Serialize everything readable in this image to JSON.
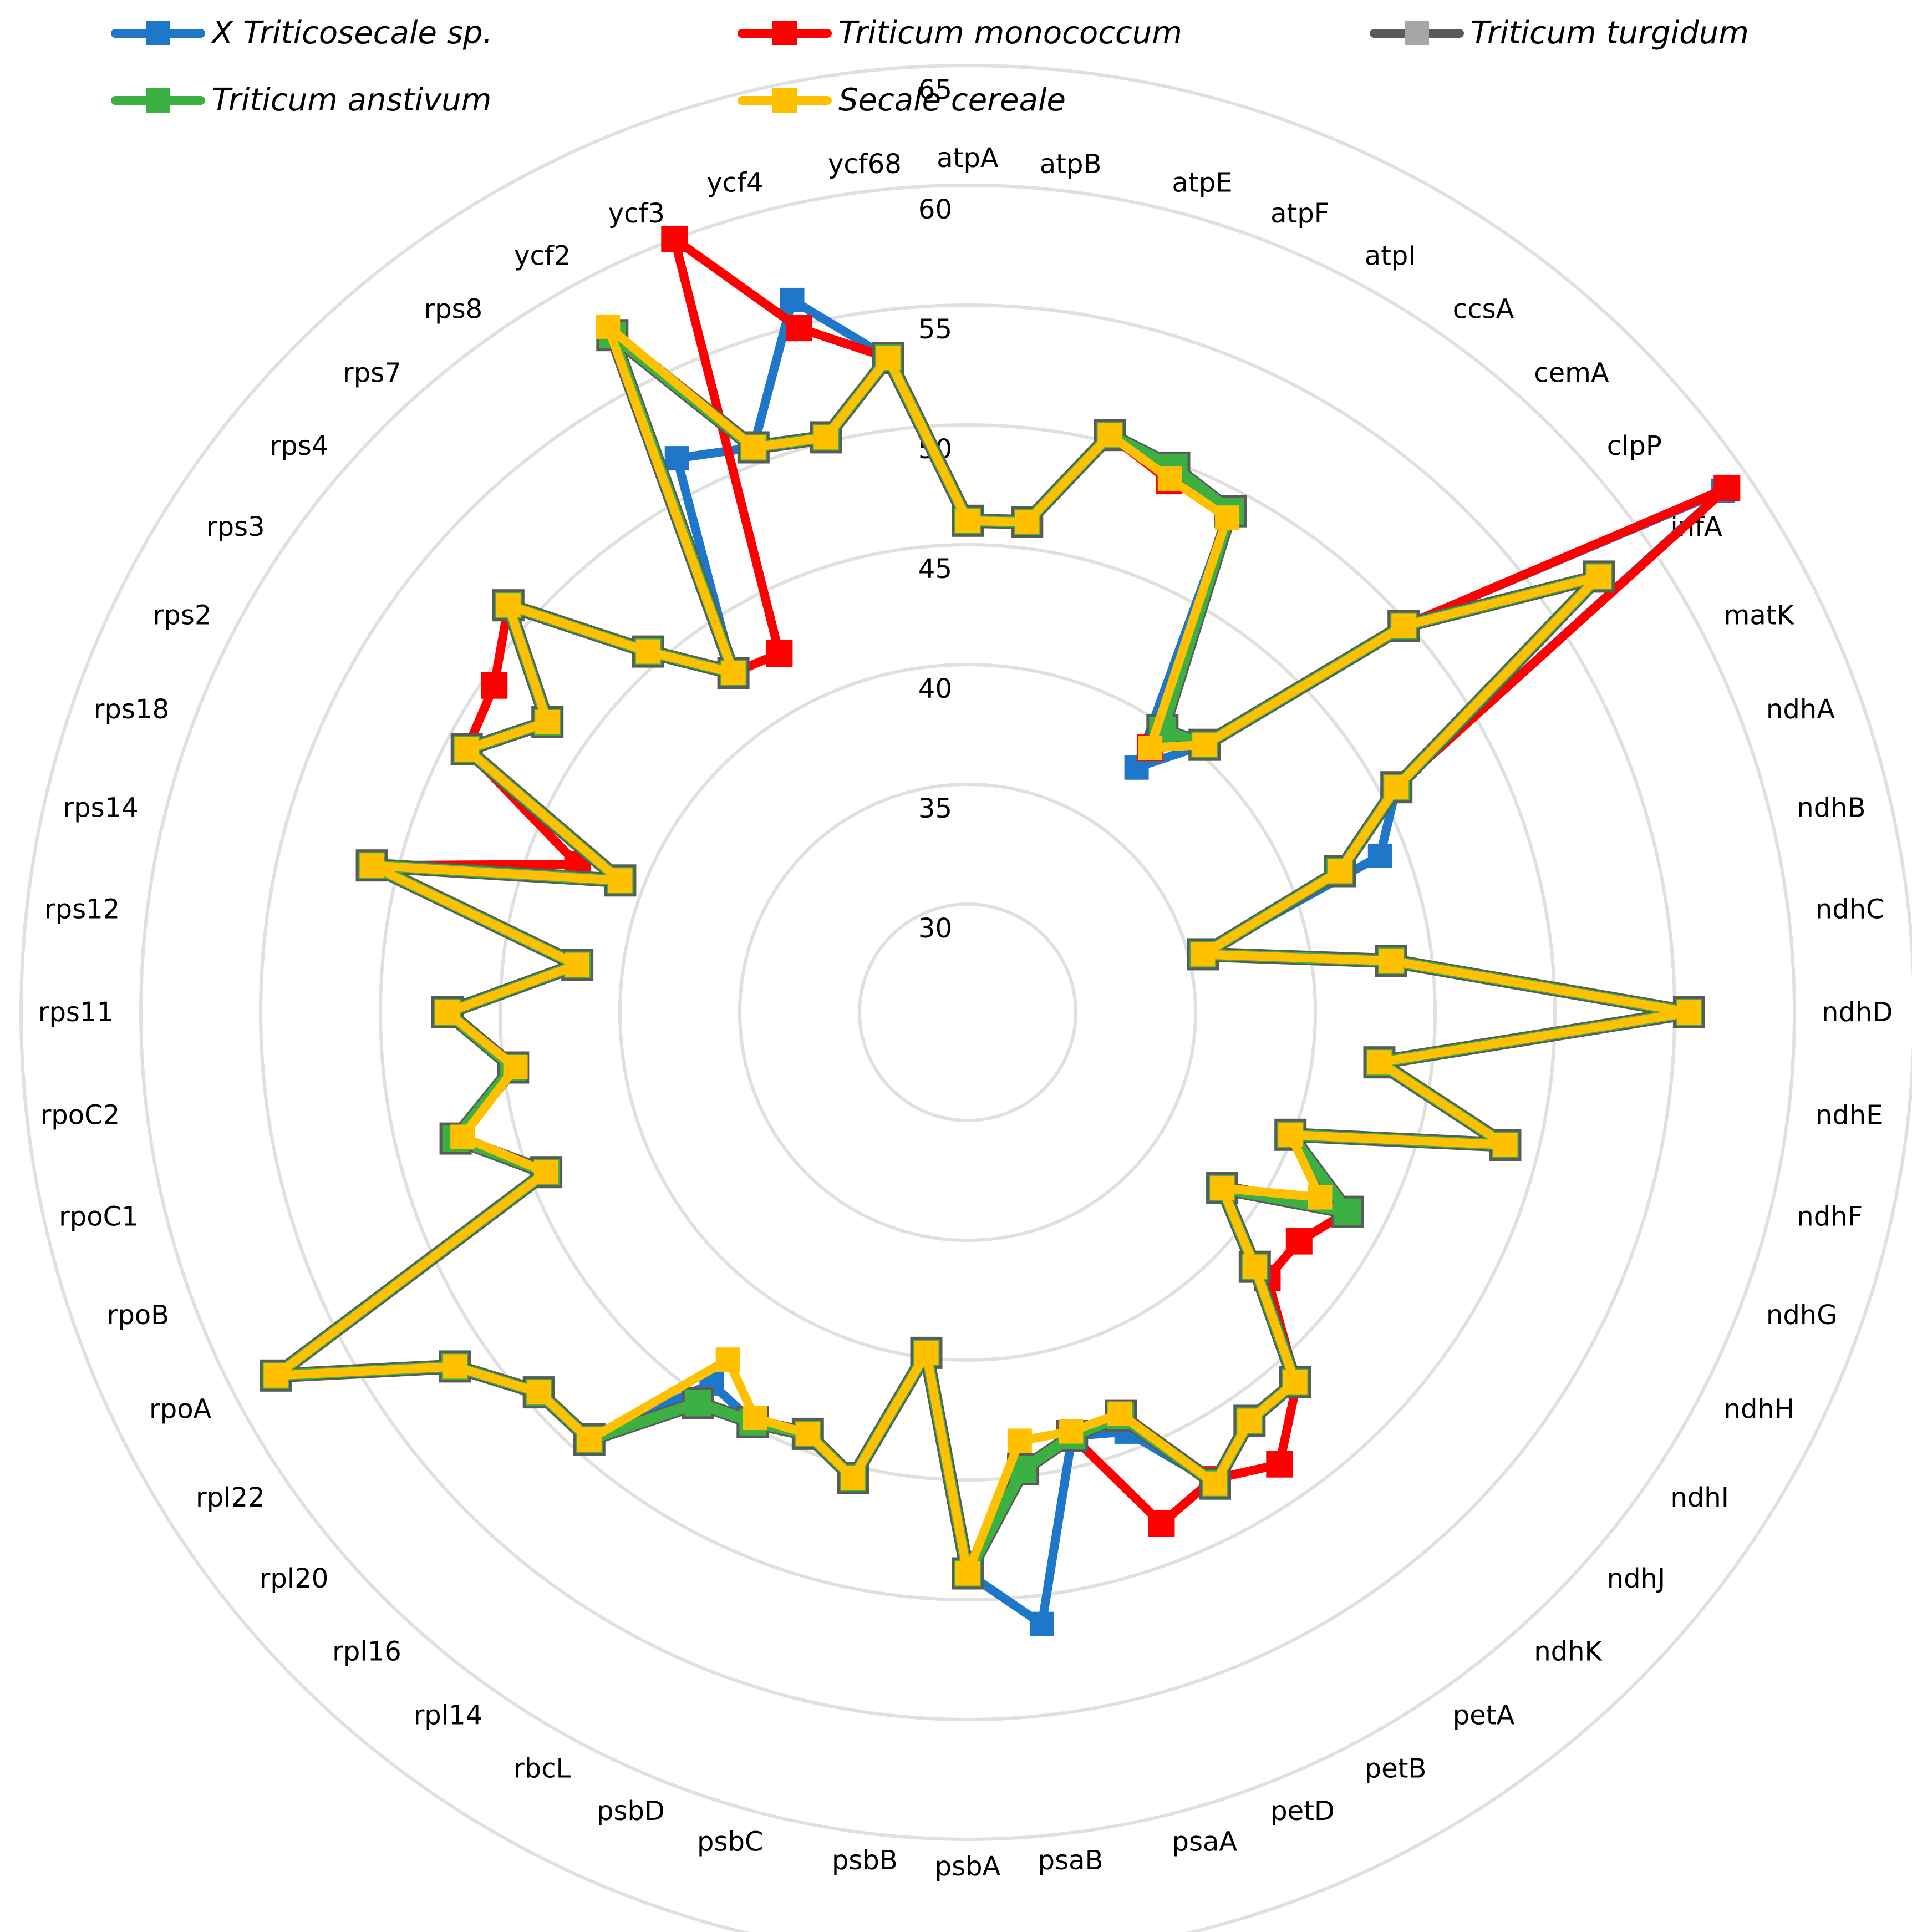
{
  "chart_data": {
    "type": "radar",
    "title": "",
    "scale": {
      "min": 30,
      "max": 65,
      "step": 5
    },
    "tick_labels": [
      "30",
      "35",
      "40",
      "45",
      "50",
      "55",
      "60",
      "65"
    ],
    "grid": true,
    "legend_position": "top",
    "categories": [
      "atpA",
      "atpB",
      "atpE",
      "atpF",
      "atpI",
      "ccsA",
      "cemA",
      "clpP",
      "infA",
      "matK",
      "ndhA",
      "ndhB",
      "ndhC",
      "ndhD",
      "ndhE",
      "ndhF",
      "ndhG",
      "ndhH",
      "ndhI",
      "ndhJ",
      "ndhK",
      "petA",
      "petB",
      "petD",
      "psaA",
      "psaB",
      "psbA",
      "psbB",
      "psbC",
      "psbD",
      "rbcL",
      "rpl14",
      "rpl16",
      "rpl20",
      "rpl22",
      "rpoA",
      "rpoB",
      "rpoC1",
      "rpoC2",
      "rps11",
      "rps12",
      "rps14",
      "rps18",
      "rps2",
      "rps3",
      "rps4",
      "rps7",
      "rps8",
      "ycf2",
      "ycf3",
      "ycf4",
      "ycf68"
    ],
    "series": [
      {
        "name": "X Triticosecale sp.",
        "color": "#1f77c9",
        "values": [
          46.0,
          46.1,
          50.3,
          49.8,
          48.8,
          37.9,
          40.4,
          49.8,
          63.8,
          45.7,
          43.9,
          35.6,
          43.3,
          55.6,
          42.8,
          48.6,
          39.9,
          43.4,
          38.4,
          41.5,
          46.1,
          46.2,
          47.7,
          44.2,
          43.7,
          51.2,
          48.9,
          39.8,
          45.5,
          44.3,
          44.8,
          44.3,
          49.3,
          49.4,
          51.5,
          58.1,
          44.3,
          47.5,
          44.6,
          47.2,
          41.9,
          51.1,
          41.0,
          49.1,
          46.8,
          51.1,
          45.6,
          42.7,
          51.6,
          50.7,
          56.1,
          53.0
        ]
      },
      {
        "name": "Triticum monococcum",
        "color": "#ff0000",
        "values": [
          46.0,
          46.1,
          50.3,
          49.2,
          49.1,
          38.9,
          40.4,
          49.8,
          64.0,
          45.7,
          42.1,
          35.6,
          43.3,
          55.6,
          42.8,
          48.6,
          39.9,
          43.4,
          42.3,
          42.2,
          46.2,
          48.4,
          47.5,
          48.3,
          43.7,
          44.7,
          48.9,
          39.8,
          45.5,
          44.3,
          44.8,
          45.3,
          49.3,
          49.4,
          51.5,
          58.1,
          44.3,
          47.5,
          44.6,
          47.2,
          41.9,
          51.1,
          42.9,
          49.1,
          49.5,
          51.1,
          45.6,
          42.7,
          42.4,
          60.0,
          54.9,
          53.0
        ]
      },
      {
        "name": "Triticum turgidum",
        "color": "#5a5a5a",
        "values": [
          46.0,
          46.1,
          50.3,
          49.8,
          49.1,
          39.8,
          40.4,
          49.8,
          57.5,
          45.7,
          42.1,
          35.6,
          43.3,
          55.6,
          42.8,
          48.6,
          39.9,
          43.4,
          38.4,
          41.5,
          46.1,
          46.2,
          47.7,
          43.5,
          43.7,
          44.7,
          48.9,
          39.8,
          45.5,
          44.3,
          44.8,
          45.3,
          49.3,
          49.4,
          51.5,
          58.1,
          44.3,
          47.5,
          44.6,
          47.2,
          41.9,
          51.1,
          41.0,
          49.1,
          46.8,
          51.1,
          45.6,
          42.7,
          57.4,
          50.7,
          50.2,
          53.0
        ]
      },
      {
        "name": "Triticum anstivum",
        "color": "#3cb043",
        "values": [
          46.0,
          46.1,
          50.3,
          49.8,
          49.1,
          39.8,
          40.4,
          49.8,
          57.5,
          45.7,
          42.1,
          35.6,
          43.3,
          55.6,
          42.8,
          48.6,
          39.9,
          43.4,
          38.4,
          41.5,
          46.1,
          46.2,
          47.7,
          43.5,
          43.7,
          44.7,
          48.9,
          39.8,
          45.5,
          44.3,
          44.8,
          45.3,
          49.3,
          49.4,
          51.5,
          58.1,
          44.3,
          47.5,
          44.6,
          47.2,
          41.9,
          51.1,
          41.0,
          49.1,
          46.8,
          51.1,
          45.6,
          42.7,
          57.4,
          50.7,
          50.2,
          53.0
        ]
      },
      {
        "name": "Secale cereale",
        "color": "#ffc000",
        "values": [
          46.0,
          46.1,
          50.3,
          49.3,
          48.8,
          38.9,
          40.4,
          49.8,
          57.5,
          45.7,
          42.1,
          35.6,
          43.3,
          55.6,
          42.8,
          48.6,
          39.9,
          42.1,
          38.4,
          41.5,
          46.1,
          46.2,
          47.7,
          43.4,
          43.5,
          43.5,
          48.9,
          39.8,
          45.5,
          44.3,
          44.6,
          43.1,
          49.3,
          49.4,
          51.5,
          58.1,
          44.3,
          47.2,
          44.5,
          47.2,
          41.9,
          51.1,
          41.0,
          49.1,
          46.8,
          51.1,
          45.6,
          42.7,
          57.8,
          50.7,
          50.2,
          53.0
        ]
      }
    ]
  },
  "legend": {
    "items": [
      {
        "label": "X Triticosecale sp.",
        "color": "#1f77c9",
        "marker_color": "#1f77c9"
      },
      {
        "label": "Triticum monococcum",
        "color": "#ff0000",
        "marker_color": "#ff0000"
      },
      {
        "label": "Triticum turgidum",
        "color": "#5a5a5a",
        "marker_color": "#a6a6a6"
      },
      {
        "label": "Triticum anstivum",
        "color": "#3cb043",
        "marker_color": "#3cb043"
      },
      {
        "label": "Secale cereale",
        "color": "#ffc000",
        "marker_color": "#ffc000"
      }
    ]
  },
  "colors": {
    "grid": "#e0e0e0",
    "text": "#000000",
    "background": "#ffffff"
  }
}
